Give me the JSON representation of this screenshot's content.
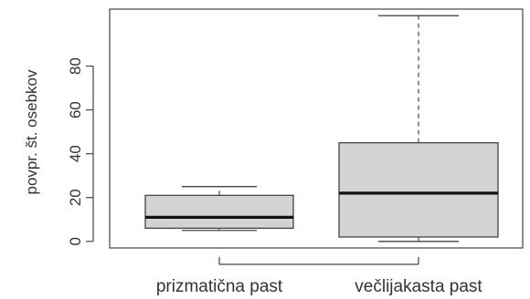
{
  "chart_data": {
    "type": "boxplot",
    "title": "",
    "xlabel": "",
    "ylabel": "povpr. št. osebkov",
    "ylim": [
      -3,
      106
    ],
    "yticks": [
      0,
      20,
      40,
      60,
      80
    ],
    "grid": false,
    "categories": [
      "prizmatična past",
      "večlijakasta past"
    ],
    "boxes": [
      {
        "min": 5,
        "q1": 6,
        "median": 11,
        "q3": 21,
        "max": 25
      },
      {
        "min": 0,
        "q1": 2,
        "median": 22,
        "q3": 45,
        "max": 103
      }
    ],
    "colors": {
      "box_fill": "#d3d3d3",
      "box_border": "#444444",
      "median": "#111111",
      "axis": "#444444",
      "text": "#333333"
    }
  }
}
